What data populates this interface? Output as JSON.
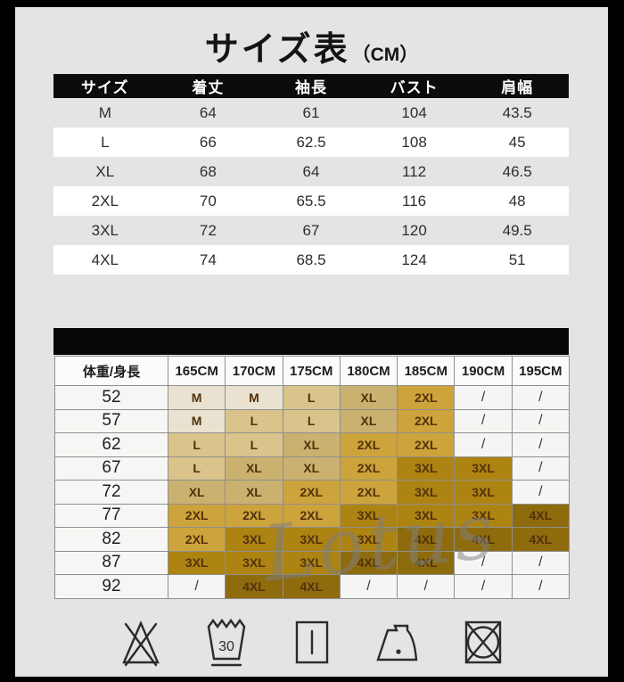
{
  "title": {
    "main": "サイズ表",
    "unit": "（CM）"
  },
  "size_table": {
    "headers": [
      "サイズ",
      "着丈",
      "袖長",
      "バスト",
      "肩幅"
    ],
    "rows": [
      {
        "size": "M",
        "values": [
          "64",
          "61",
          "104",
          "43.5"
        ]
      },
      {
        "size": "L",
        "values": [
          "66",
          "62.5",
          "108",
          "45"
        ]
      },
      {
        "size": "XL",
        "values": [
          "68",
          "64",
          "112",
          "46.5"
        ]
      },
      {
        "size": "2XL",
        "values": [
          "70",
          "65.5",
          "116",
          "48"
        ]
      },
      {
        "size": "3XL",
        "values": [
          "72",
          "67",
          "120",
          "49.5"
        ]
      },
      {
        "size": "4XL",
        "values": [
          "74",
          "68.5",
          "124",
          "51"
        ]
      }
    ]
  },
  "fit_table": {
    "corner": "体重/身長",
    "heights": [
      "165CM",
      "170CM",
      "175CM",
      "180CM",
      "185CM",
      "190CM",
      "195CM"
    ],
    "rows": [
      {
        "weight": "52",
        "cells": [
          "M",
          "M",
          "L",
          "XL",
          "2XL",
          "/",
          "/"
        ]
      },
      {
        "weight": "57",
        "cells": [
          "M",
          "L",
          "L",
          "XL",
          "2XL",
          "/",
          "/"
        ]
      },
      {
        "weight": "62",
        "cells": [
          "L",
          "L",
          "XL",
          "2XL",
          "2XL",
          "/",
          "/"
        ]
      },
      {
        "weight": "67",
        "cells": [
          "L",
          "XL",
          "XL",
          "2XL",
          "3XL",
          "3XL",
          "/"
        ]
      },
      {
        "weight": "72",
        "cells": [
          "XL",
          "XL",
          "2XL",
          "2XL",
          "3XL",
          "3XL",
          "/"
        ]
      },
      {
        "weight": "77",
        "cells": [
          "2XL",
          "2XL",
          "2XL",
          "3XL",
          "3XL",
          "3XL",
          "4XL"
        ]
      },
      {
        "weight": "82",
        "cells": [
          "2XL",
          "3XL",
          "3XL",
          "3XL",
          "4XL",
          "4XL",
          "4XL"
        ]
      },
      {
        "weight": "87",
        "cells": [
          "3XL",
          "3XL",
          "3XL",
          "4XL",
          "4XL",
          "/",
          "/"
        ]
      },
      {
        "weight": "92",
        "cells": [
          "/",
          "4XL",
          "4XL",
          "/",
          "/",
          "/",
          "/"
        ]
      }
    ],
    "size_colors": {
      "M": "#e9e2d0",
      "L": "#dac48c",
      "XL": "#cbb170",
      "2XL": "#cda33c",
      "3XL": "#ad8312",
      "4XL": "#8e6c0e"
    }
  },
  "watermark": {
    "text": "Lotus"
  },
  "care_icons": [
    {
      "name": "do-not-bleach-icon"
    },
    {
      "name": "wash-30-icon",
      "label": "30"
    },
    {
      "name": "drip-dry-icon"
    },
    {
      "name": "iron-low-icon"
    },
    {
      "name": "do-not-tumble-dry-icon"
    }
  ]
}
